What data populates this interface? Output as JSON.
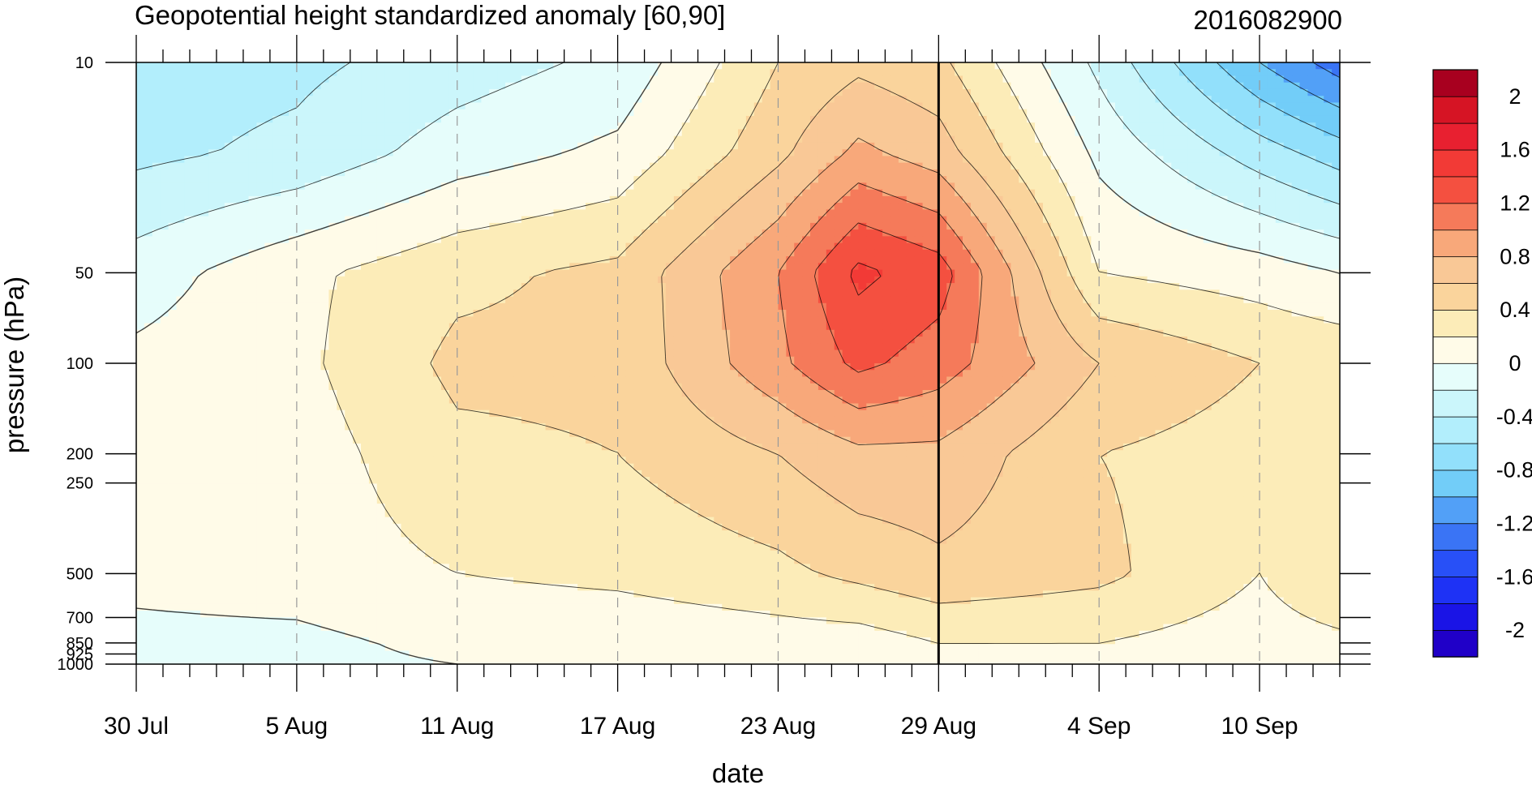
{
  "chart_data": {
    "type": "heatmap",
    "subtype": "filled-contour",
    "title": "Geopotential height standardized anomaly [60,90]",
    "subtitle": "2016082900",
    "xlabel": "date",
    "ylabel": "pressure (hPa)",
    "x_start": "30 Jul",
    "x_tick_labels": [
      "30 Jul",
      "5 Aug",
      "11 Aug",
      "17 Aug",
      "23 Aug",
      "29 Aug",
      "4 Sep",
      "10 Sep"
    ],
    "x_tick_days": [
      0,
      6,
      12,
      18,
      24,
      30,
      36,
      42
    ],
    "x_range_days": [
      0,
      45
    ],
    "y_tick_labels": [
      "10",
      "50",
      "100",
      "200",
      "250",
      "500",
      "700",
      "850",
      "925",
      "1000"
    ],
    "y_tick_values": [
      10,
      50,
      100,
      200,
      250,
      500,
      700,
      850,
      925,
      1000
    ],
    "ylim": [
      1000,
      10
    ],
    "y_scale": "log",
    "vertical_marker_day": 30,
    "grid": "dashed vertical lines at labeled dates",
    "colorbar": {
      "labels": [
        "2",
        "1.6",
        "1.2",
        "0.8",
        "0.4",
        "0",
        "-0.4",
        "-0.8",
        "-1.2",
        "-1.6",
        "-2"
      ],
      "levels": [
        -2.2,
        -2.0,
        -1.8,
        -1.6,
        -1.4,
        -1.2,
        -1.0,
        -0.8,
        -0.6,
        -0.4,
        -0.2,
        0,
        0.2,
        0.4,
        0.6,
        0.8,
        1.0,
        1.2,
        1.4,
        1.6,
        1.8,
        2.0,
        2.2
      ],
      "colors": [
        "#2000c8",
        "#1a14e6",
        "#1e32f5",
        "#2850f7",
        "#3a74f5",
        "#52a0f7",
        "#72cdf8",
        "#92e0fb",
        "#b2eefc",
        "#cbf6fb",
        "#e6fdfb",
        "#fffbe8",
        "#fcecb8",
        "#fad49c",
        "#f9c896",
        "#f8a87a",
        "#f57a5a",
        "#f45040",
        "#f23a36",
        "#e82030",
        "#d61424",
        "#a8001f"
      ]
    },
    "contour_levels": [
      -1.4,
      -1.2,
      -1.0,
      -0.8,
      -0.6,
      -0.4,
      -0.2,
      0,
      0.2,
      0.4,
      0.6,
      0.8,
      1.0,
      1.2,
      1.4,
      1.6
    ],
    "anomaly_grid": {
      "x_days": [
        0,
        6,
        12,
        18,
        24,
        27,
        30,
        36,
        42,
        45
      ],
      "p_levels_hpa": [
        10,
        20,
        50,
        100,
        200,
        500,
        850,
        1000
      ],
      "values": [
        [
          -0.5,
          -0.45,
          -0.3,
          -0.15,
          0.4,
          0.55,
          0.45,
          -0.25,
          -1.0,
          -1.3
        ],
        [
          -0.45,
          -0.35,
          -0.1,
          0.05,
          0.55,
          0.85,
          0.7,
          -0.05,
          -0.5,
          -0.7
        ],
        [
          -0.1,
          0.15,
          0.35,
          0.45,
          1.0,
          1.45,
          1.3,
          0.2,
          0.1,
          0.0
        ],
        [
          0.05,
          0.15,
          0.45,
          0.45,
          0.95,
          1.25,
          1.1,
          0.6,
          0.4,
          0.35
        ],
        [
          0.05,
          0.1,
          0.35,
          0.4,
          0.6,
          0.75,
          0.75,
          0.4,
          0.3,
          0.3
        ],
        [
          0.05,
          0.1,
          0.2,
          0.25,
          0.35,
          0.45,
          0.55,
          0.45,
          0.2,
          0.4
        ],
        [
          -0.05,
          -0.05,
          0.05,
          0.05,
          0.1,
          0.1,
          0.2,
          0.2,
          0.1,
          0.15
        ],
        [
          -0.1,
          -0.05,
          0.0,
          0.05,
          0.0,
          0.0,
          0.15,
          0.15,
          0.05,
          0.1
        ]
      ]
    }
  }
}
